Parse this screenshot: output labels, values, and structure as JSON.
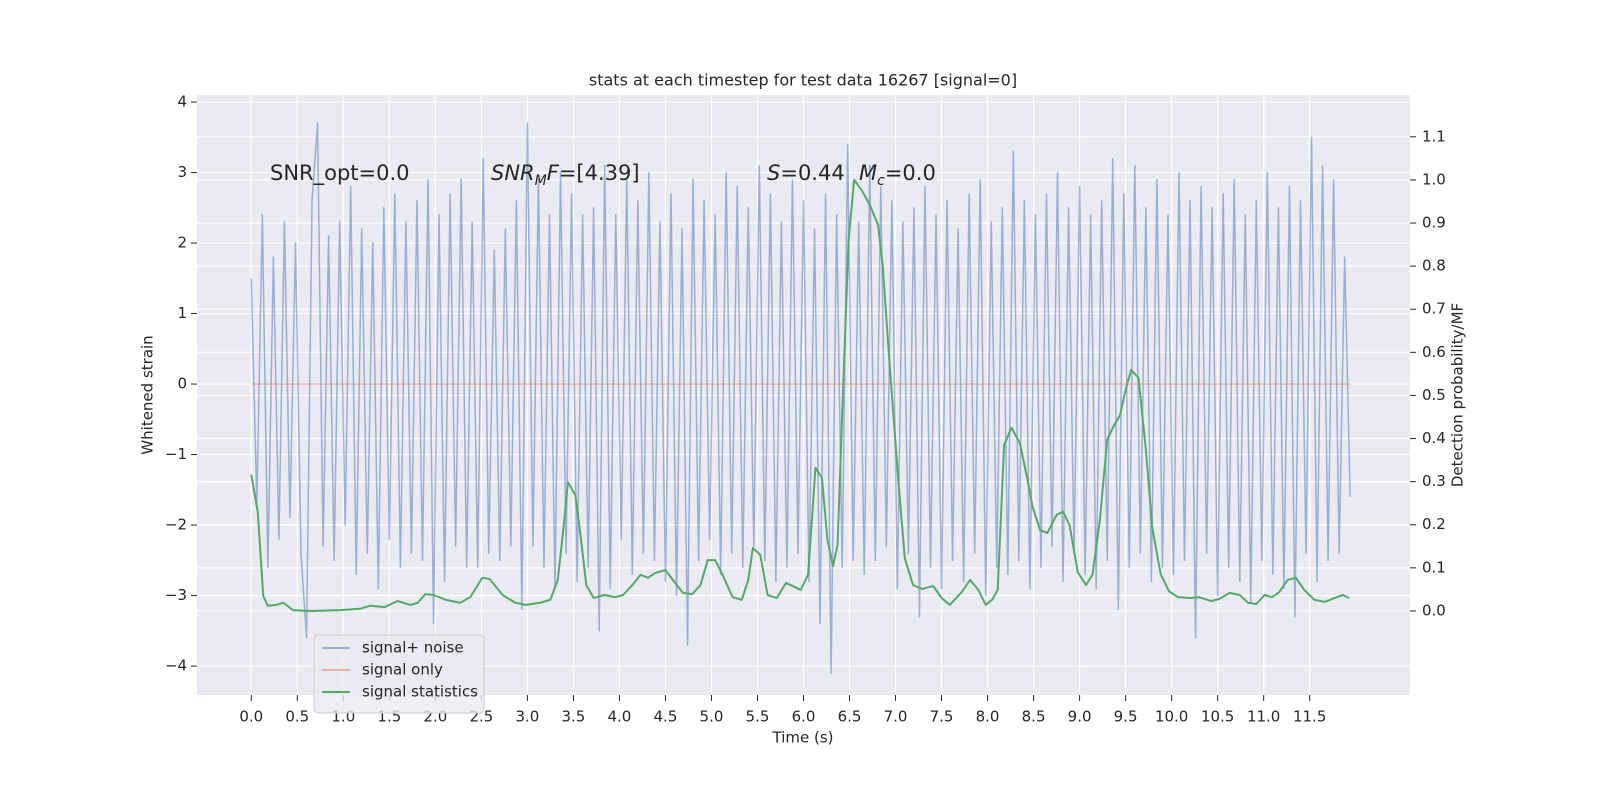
{
  "chart_data": {
    "type": "line",
    "title": "stats at each timestep for test data 16267 [signal=0]",
    "x_label": "Time (s)",
    "y_label": "Whitened strain",
    "y2_label": "Detection probability/MF",
    "xlim": [
      -0.59,
      12.59
    ],
    "ylim": [
      -4.41,
      4.1
    ],
    "y2lim": [
      -0.195,
      1.197
    ],
    "xticks": [
      {
        "value": 0,
        "label": "0.0"
      },
      0.5,
      {
        "value": 1,
        "label": "1.0"
      },
      1.5,
      {
        "value": 2,
        "label": "2.0"
      },
      2.5,
      {
        "value": 3,
        "label": "3.0"
      },
      3.5,
      {
        "value": 4,
        "label": "4.0"
      },
      4.5,
      {
        "value": 5,
        "label": "5.0"
      },
      5.5,
      {
        "value": 6,
        "label": "6.0"
      },
      6.5,
      {
        "value": 7,
        "label": "7.0"
      },
      7.5,
      {
        "value": 8,
        "label": "8.0"
      },
      8.5,
      {
        "value": 9,
        "label": "9.0"
      },
      9.5,
      {
        "value": 10,
        "label": "10.0"
      },
      10.5,
      {
        "value": 11,
        "label": "11.0"
      },
      11.5
    ],
    "yticks": [
      {
        "value": -4,
        "label": "−4"
      },
      {
        "value": -3,
        "label": "−3"
      },
      {
        "value": -2,
        "label": "−2"
      },
      {
        "value": -1,
        "label": "−1"
      },
      0,
      1,
      2,
      3,
      4
    ],
    "y2ticks": [
      {
        "value": 0,
        "label": "0.0"
      },
      0.1,
      0.2,
      0.3,
      0.4,
      0.5,
      0.6,
      0.7,
      0.8,
      0.9,
      {
        "value": 1,
        "label": "1.0"
      },
      1.1
    ],
    "grid": true,
    "legend": "lower left",
    "annotations": [
      {
        "parts": [
          {
            "text": "SNR_opt=0.0"
          }
        ]
      },
      {
        "parts": [
          {
            "text": "SNR",
            "italic": true
          },
          {
            "text": "M",
            "italic": true,
            "sub": true
          },
          {
            "text": "F",
            "italic": true
          },
          {
            "text": "=[4.39]"
          }
        ]
      },
      {
        "parts": [
          {
            "text": "S",
            "italic": true
          },
          {
            "text": "=0.44"
          }
        ]
      },
      {
        "parts": [
          {
            "text": "M",
            "italic": true
          },
          {
            "text": "c",
            "italic": true,
            "sub": true
          },
          {
            "text": "=0.0"
          }
        ]
      }
    ],
    "series": [
      {
        "name": "signal+ noise",
        "color": "#4c72b0",
        "alpha": 0.5,
        "x": [
          0,
          0.06,
          0.12,
          0.18,
          0.24,
          0.3,
          0.36,
          0.42,
          0.48,
          0.54,
          0.6,
          0.66,
          0.72,
          0.78,
          0.84,
          0.9,
          0.96,
          1.02,
          1.08,
          1.14,
          1.2,
          1.26,
          1.32,
          1.38,
          1.44,
          1.5,
          1.56,
          1.62,
          1.68,
          1.74,
          1.8,
          1.86,
          1.92,
          1.98,
          2.04,
          2.1,
          2.16,
          2.22,
          2.28,
          2.34,
          2.4,
          2.46,
          2.52,
          2.58,
          2.64,
          2.7,
          2.76,
          2.82,
          2.88,
          2.94,
          3,
          3.06,
          3.12,
          3.18,
          3.24,
          3.3,
          3.36,
          3.42,
          3.48,
          3.54,
          3.6,
          3.66,
          3.72,
          3.78,
          3.84,
          3.9,
          3.96,
          4.02,
          4.08,
          4.14,
          4.2,
          4.26,
          4.32,
          4.38,
          4.44,
          4.5,
          4.56,
          4.62,
          4.68,
          4.74,
          4.8,
          4.86,
          4.92,
          4.98,
          5.04,
          5.1,
          5.16,
          5.22,
          5.28,
          5.34,
          5.4,
          5.46,
          5.52,
          5.58,
          5.64,
          5.7,
          5.76,
          5.82,
          5.88,
          5.94,
          6,
          6.06,
          6.12,
          6.18,
          6.24,
          6.3,
          6.36,
          6.42,
          6.48,
          6.54,
          6.6,
          6.66,
          6.72,
          6.78,
          6.84,
          6.9,
          6.96,
          7.02,
          7.08,
          7.14,
          7.2,
          7.26,
          7.32,
          7.38,
          7.44,
          7.5,
          7.56,
          7.62,
          7.68,
          7.74,
          7.8,
          7.86,
          7.92,
          7.98,
          8.04,
          8.1,
          8.16,
          8.22,
          8.28,
          8.34,
          8.4,
          8.46,
          8.52,
          8.58,
          8.64,
          8.7,
          8.76,
          8.82,
          8.88,
          8.94,
          9,
          9.06,
          9.12,
          9.18,
          9.24,
          9.3,
          9.36,
          9.42,
          9.48,
          9.54,
          9.6,
          9.66,
          9.72,
          9.78,
          9.84,
          9.9,
          9.96,
          10.02,
          10.08,
          10.14,
          10.2,
          10.26,
          10.32,
          10.38,
          10.44,
          10.5,
          10.56,
          10.62,
          10.68,
          10.74,
          10.8,
          10.86,
          10.92,
          10.98,
          11.04,
          11.1,
          11.16,
          11.22,
          11.28,
          11.34,
          11.4,
          11.46,
          11.52,
          11.58,
          11.64,
          11.7,
          11.76,
          11.82,
          11.88,
          11.94
        ],
        "values": [
          1.5,
          -1.7,
          2.4,
          -2.6,
          1.8,
          -2.2,
          2.3,
          -1.9,
          2.0,
          -2.4,
          -3.6,
          2.6,
          3.7,
          -2.3,
          2.1,
          -2.5,
          2.3,
          -2.0,
          2.8,
          -2.7,
          2.2,
          -2.4,
          2.0,
          -2.9,
          2.5,
          -2.2,
          2.7,
          -2.6,
          2.3,
          -2.4,
          2.6,
          -2.5,
          2.9,
          -3.4,
          2.4,
          -2.8,
          2.7,
          -2.3,
          2.9,
          -2.6,
          2.3,
          -2.6,
          3.2,
          -2.4,
          1.9,
          -2.5,
          2.2,
          -2.3,
          2.6,
          -3.2,
          3.7,
          -2.3,
          2.9,
          -2.6,
          2.4,
          -2.9,
          3.0,
          -2.4,
          2.7,
          -2.8,
          2.4,
          -2.6,
          2.5,
          -3.5,
          3.1,
          -2.9,
          2.4,
          -2.2,
          2.9,
          -2.7,
          2.6,
          -2.4,
          3.0,
          -2.5,
          2.3,
          -2.8,
          2.7,
          -3.0,
          2.2,
          -3.7,
          2.9,
          -2.5,
          2.6,
          -2.2,
          2.4,
          -2.7,
          3.0,
          -2.4,
          2.8,
          -2.6,
          2.5,
          -2.3,
          3.1,
          -2.5,
          2.7,
          -2.8,
          2.3,
          -2.6,
          2.9,
          -2.4,
          2.6,
          -2.8,
          2.2,
          -3.4,
          2.7,
          -4.1,
          2.4,
          -2.6,
          3.4,
          -2.5,
          2.3,
          -2.7,
          3.1,
          -2.5,
          2.8,
          -2.3,
          2.6,
          -2.9,
          2.3,
          -2.4,
          2.5,
          -3.3,
          2.8,
          -2.6,
          2.4,
          -2.9,
          2.6,
          -2.5,
          2.2,
          -2.8,
          2.7,
          -2.4,
          2.9,
          -3.0,
          2.3,
          -2.6,
          2.5,
          -2.7,
          3.3,
          -2.5,
          2.6,
          -2.9,
          2.4,
          -2.6,
          2.7,
          -2.3,
          3.0,
          -2.8,
          2.5,
          -2.4,
          2.8,
          -2.7,
          2.4,
          -2.9,
          2.6,
          -2.5,
          3.2,
          -3.2,
          2.7,
          -2.6,
          3.1,
          -2.4,
          2.5,
          -2.8,
          2.9,
          -2.6,
          2.4,
          -2.7,
          3.0,
          -2.5,
          2.6,
          -3.6,
          2.8,
          -2.4,
          2.5,
          -3.0,
          2.7,
          -2.6,
          2.9,
          -2.8,
          2.4,
          -3.1,
          2.6,
          -2.5,
          3.0,
          -2.7,
          2.5,
          -2.9,
          2.8,
          -3.3,
          2.6,
          -2.4,
          3.5,
          -2.8,
          3.1,
          -2.5,
          2.9,
          -2.4,
          1.8,
          -1.6
        ]
      },
      {
        "name": "signal only",
        "color": "#dd8452",
        "alpha": 0.5,
        "x": [
          0,
          11.94
        ],
        "values": [
          0,
          0
        ]
      },
      {
        "name": "signal statistics",
        "color": "#55a868",
        "axis": "y2",
        "x": [
          0,
          0.07,
          0.13,
          0.18,
          0.27,
          0.35,
          0.45,
          0.64,
          0.97,
          1.18,
          1.29,
          1.45,
          1.59,
          1.73,
          1.81,
          1.89,
          1.98,
          2.11,
          2.27,
          2.38,
          2.51,
          2.59,
          2.73,
          2.87,
          2.98,
          3.14,
          3.25,
          3.33,
          3.39,
          3.44,
          3.52,
          3.57,
          3.64,
          3.72,
          3.84,
          3.95,
          4.04,
          4.14,
          4.23,
          4.31,
          4.39,
          4.5,
          4.58,
          4.69,
          4.79,
          4.88,
          4.96,
          5.04,
          5.12,
          5.23,
          5.33,
          5.4,
          5.45,
          5.53,
          5.61,
          5.71,
          5.81,
          5.88,
          5.97,
          6.05,
          6.13,
          6.2,
          6.26,
          6.32,
          6.37,
          6.43,
          6.49,
          6.55,
          6.63,
          6.72,
          6.81,
          6.86,
          6.94,
          7.03,
          7.1,
          7.19,
          7.29,
          7.41,
          7.5,
          7.59,
          7.72,
          7.81,
          7.9,
          7.98,
          8.05,
          8.11,
          8.18,
          8.26,
          8.35,
          8.43,
          8.49,
          8.57,
          8.65,
          8.75,
          8.82,
          8.89,
          8.98,
          9.07,
          9.14,
          9.22,
          9.3,
          9.36,
          9.44,
          9.5,
          9.56,
          9.64,
          9.72,
          9.79,
          9.88,
          9.97,
          10.07,
          10.2,
          10.3,
          10.43,
          10.52,
          10.63,
          10.74,
          10.83,
          10.92,
          11.01,
          11.09,
          11.17,
          11.26,
          11.35,
          11.44,
          11.55,
          11.66,
          11.77,
          11.86,
          11.93
        ],
        "values": [
          0.316,
          0.23,
          0.035,
          0.012,
          0.014,
          0.019,
          0.002,
          0,
          0.002,
          0.005,
          0.012,
          0.009,
          0.023,
          0.014,
          0.019,
          0.039,
          0.037,
          0.026,
          0.019,
          0.032,
          0.077,
          0.074,
          0.037,
          0.019,
          0.014,
          0.019,
          0.026,
          0.072,
          0.188,
          0.299,
          0.269,
          0.188,
          0.06,
          0.03,
          0.037,
          0.032,
          0.037,
          0.06,
          0.084,
          0.077,
          0.088,
          0.095,
          0.072,
          0.042,
          0.039,
          0.06,
          0.118,
          0.118,
          0.084,
          0.032,
          0.026,
          0.072,
          0.146,
          0.13,
          0.037,
          0.03,
          0.065,
          0.058,
          0.049,
          0.084,
          0.332,
          0.309,
          0.165,
          0.104,
          0.153,
          0.513,
          0.861,
          1.0,
          0.977,
          0.942,
          0.896,
          0.803,
          0.559,
          0.304,
          0.123,
          0.06,
          0.051,
          0.058,
          0.03,
          0.014,
          0.044,
          0.072,
          0.049,
          0.014,
          0.026,
          0.049,
          0.385,
          0.425,
          0.39,
          0.309,
          0.241,
          0.188,
          0.181,
          0.223,
          0.23,
          0.2,
          0.09,
          0.06,
          0.084,
          0.211,
          0.397,
          0.425,
          0.455,
          0.513,
          0.559,
          0.541,
          0.374,
          0.193,
          0.086,
          0.046,
          0.032,
          0.03,
          0.032,
          0.023,
          0.028,
          0.042,
          0.037,
          0.019,
          0.016,
          0.037,
          0.032,
          0.044,
          0.072,
          0.077,
          0.049,
          0.026,
          0.021,
          0.03,
          0.037,
          0.03
        ]
      }
    ]
  }
}
